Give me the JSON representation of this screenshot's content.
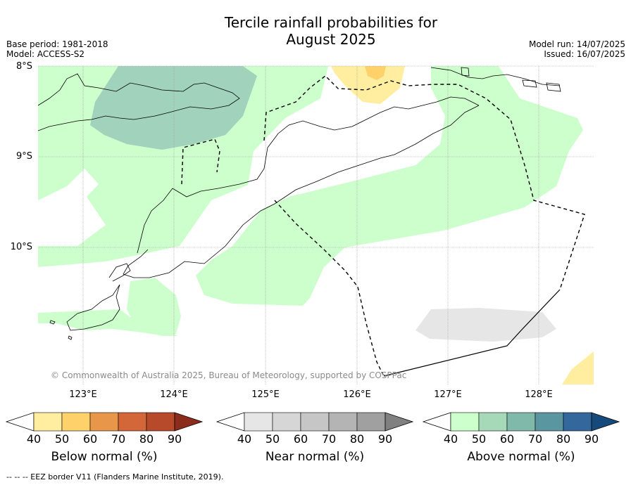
{
  "title_line1": "Tercile rainfall probabilities for",
  "title_line2": "August 2025",
  "base_period": "Base period: 1981-2018",
  "model": "Model: ACCESS-S2",
  "model_run": "Model run: 14/07/2025",
  "issued": "Issued: 16/07/2025",
  "lat_labels": [
    "8°S",
    "9°S",
    "10°S"
  ],
  "lon_labels": [
    "123°E",
    "124°E",
    "125°E",
    "126°E",
    "127°E",
    "128°E"
  ],
  "copyright": "© Commonwealth of Australia 2025, Bureau of Meteorology, supported by COSPPac",
  "colorbars": [
    {
      "label": "Below normal (%)",
      "ticks": [
        "40",
        "50",
        "60",
        "70",
        "80",
        "90"
      ],
      "colors": [
        "#ffeda0",
        "#fed16a",
        "#e8964a",
        "#d4673a",
        "#b64a2a",
        "#8c2c1c"
      ]
    },
    {
      "label": "Near normal (%)",
      "ticks": [
        "40",
        "50",
        "60",
        "70",
        "80",
        "90"
      ],
      "colors": [
        "#e6e6e6",
        "#d6d6d6",
        "#c6c6c6",
        "#b4b4b4",
        "#a0a0a0",
        "#808080"
      ]
    },
    {
      "label": "Above normal (%)",
      "ticks": [
        "40",
        "50",
        "60",
        "70",
        "80",
        "90"
      ],
      "colors": [
        "#ccffcc",
        "#a6d9b8",
        "#80b8aa",
        "#5a96a0",
        "#34689c",
        "#174a7c"
      ]
    }
  ],
  "footer": "--  --  -- EEZ border V11 (Flanders Marine Institute, 2019)."
}
